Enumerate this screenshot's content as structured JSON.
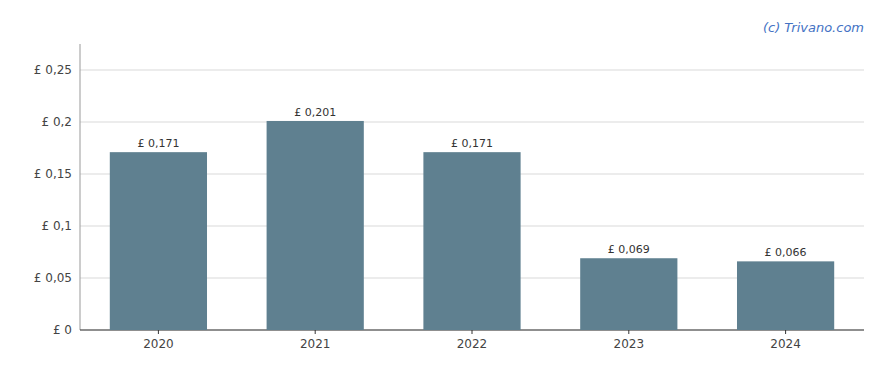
{
  "chart_data": {
    "type": "bar",
    "categories": [
      "2020",
      "2021",
      "2022",
      "2023",
      "2024"
    ],
    "values": [
      0.171,
      0.201,
      0.171,
      0.069,
      0.066
    ],
    "value_labels": [
      "£ 0,171",
      "£ 0,201",
      "£ 0,171",
      "£ 0,069",
      "£ 0,066"
    ],
    "data_labels": true,
    "color": "#5f8090",
    "ylim": [
      0,
      0.275
    ],
    "yticks": [
      {
        "value": 0,
        "label": "£ 0"
      },
      {
        "value": 0.05,
        "label": "£ 0,05"
      },
      {
        "value": 0.1,
        "label": "£ 0,1"
      },
      {
        "value": 0.15,
        "label": "£ 0,15"
      },
      {
        "value": 0.2,
        "label": "£ 0,2"
      },
      {
        "value": 0.25,
        "label": "£ 0,25"
      }
    ],
    "grid": true,
    "annotations": [
      {
        "text": "(c) Trivano.com",
        "color": "#4472c4"
      }
    ]
  }
}
